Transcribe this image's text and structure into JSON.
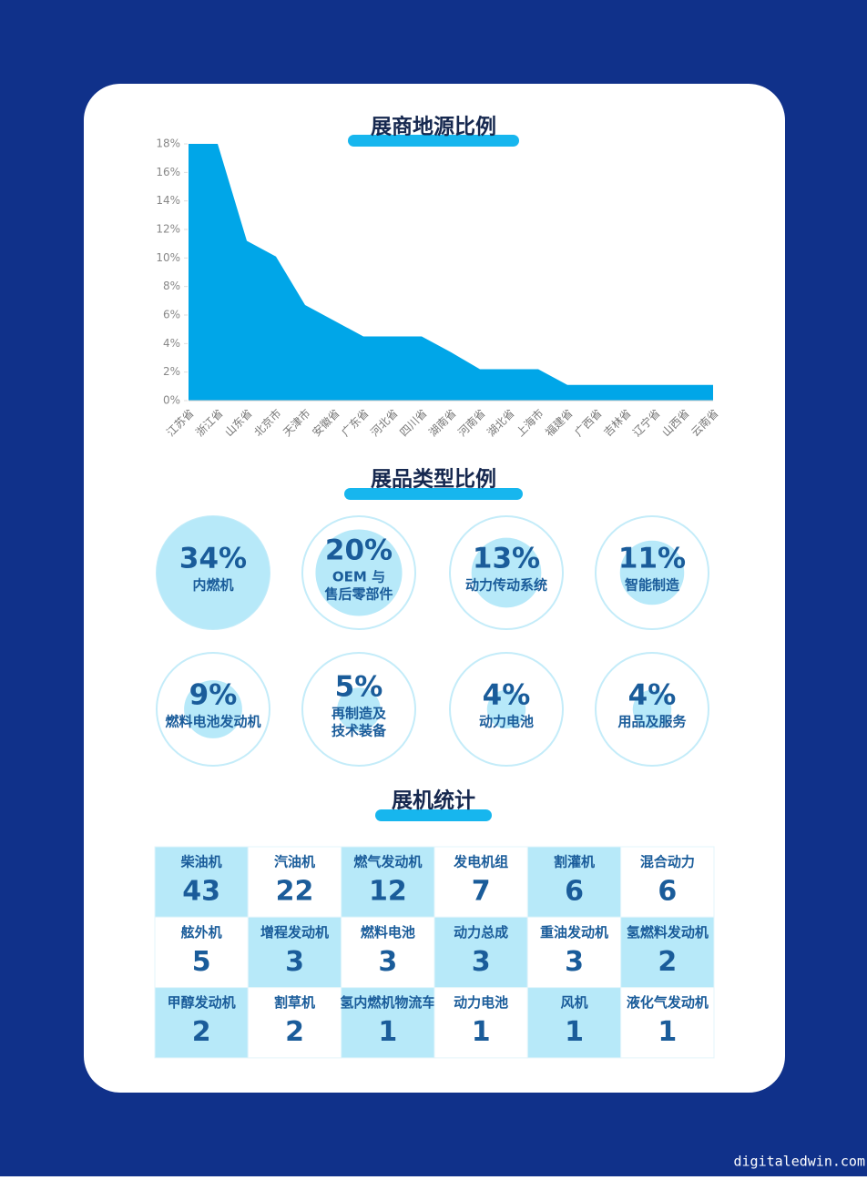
{
  "chart_data": [
    {
      "type": "area",
      "title": "展商地源比例",
      "categories": [
        "江苏省",
        "浙江省",
        "山东省",
        "北京市",
        "天津市",
        "安徽省",
        "广东省",
        "河北省",
        "四川省",
        "湖南省",
        "河南省",
        "湖北省",
        "上海市",
        "福建省",
        "广西省",
        "吉林省",
        "辽宁省",
        "山西省",
        "云南省"
      ],
      "values": [
        18,
        18,
        11.2,
        10.1,
        6.7,
        5.6,
        4.5,
        4.5,
        4.5,
        3.4,
        2.2,
        2.2,
        2.2,
        1.1,
        1.1,
        1.1,
        1.1,
        1.1,
        1.1
      ],
      "color": "#00a6e8",
      "ylim": [
        0,
        18
      ],
      "yticks": [
        {
          "value": 0,
          "label": "0%"
        },
        {
          "value": 2,
          "label": "2%"
        },
        {
          "value": 4,
          "label": "4%"
        },
        {
          "value": 6,
          "label": "6%"
        },
        {
          "value": 8,
          "label": "8%"
        },
        {
          "value": 10,
          "label": "10%"
        },
        {
          "value": 12,
          "label": "12%"
        },
        {
          "value": 14,
          "label": "14%"
        },
        {
          "value": 16,
          "label": "16%"
        },
        {
          "value": 18,
          "label": "18%"
        }
      ]
    },
    {
      "type": "proportional-circles",
      "title": "展品类型比例",
      "categories": [
        [
          "内燃机"
        ],
        [
          "OEM 与",
          "售后零部件"
        ],
        [
          "动力传动系统"
        ],
        [
          "智能制造"
        ],
        [
          "燃料电池发动机"
        ],
        [
          "再制造及",
          "技术装备"
        ],
        [
          "动力电池"
        ],
        [
          "用品及服务"
        ]
      ],
      "values": [
        34,
        20,
        13,
        11,
        9,
        5,
        4,
        4
      ],
      "value_labels": [
        "34%",
        "20%",
        "13%",
        "11%",
        "9%",
        "5%",
        "4%",
        "4%"
      ],
      "color": "#b7e9f9"
    }
  ],
  "table": {
    "title": "展机统计",
    "cells": [
      [
        "柴油机",
        "43"
      ],
      [
        "汽油机",
        "22"
      ],
      [
        "燃气发动机",
        "12"
      ],
      [
        "发电机组",
        "7"
      ],
      [
        "割灌机",
        "6"
      ],
      [
        "混合动力",
        "6"
      ],
      [
        "舷外机",
        "5"
      ],
      [
        "增程发动机",
        "3"
      ],
      [
        "燃料电池",
        "3"
      ],
      [
        "动力总成",
        "3"
      ],
      [
        "重油发动机",
        "3"
      ],
      [
        "氢燃料发动机",
        "2"
      ],
      [
        "甲醇发动机",
        "2"
      ],
      [
        "割草机",
        "2"
      ],
      [
        "氢内燃机物流车",
        "1"
      ],
      [
        "动力电池",
        "1"
      ],
      [
        "风机",
        "1"
      ],
      [
        "液化气发动机",
        "1"
      ]
    ]
  },
  "watermark": "digitaledwin.com"
}
